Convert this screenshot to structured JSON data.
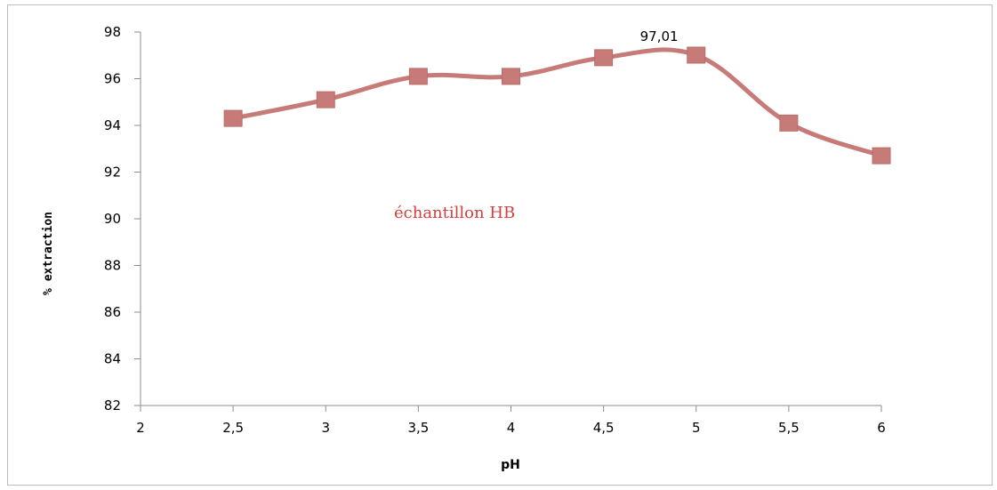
{
  "chart_data": {
    "type": "line",
    "title": "",
    "xlabel": "pH",
    "ylabel": "% extraction",
    "xlim": [
      2,
      6
    ],
    "ylim": [
      82,
      98
    ],
    "x_ticks": [
      "2",
      "2,5",
      "3",
      "3,5",
      "4",
      "4,5",
      "5",
      "5,5",
      "6"
    ],
    "y_ticks": [
      "82",
      "84",
      "86",
      "88",
      "90",
      "92",
      "94",
      "96",
      "98"
    ],
    "grid": false,
    "series": [
      {
        "name": "échantillon HB",
        "color": "#c77b78",
        "marker": "square",
        "x": [
          2.5,
          3,
          3.5,
          4,
          4.5,
          5,
          5.5,
          6
        ],
        "y": [
          94.3,
          95.1,
          96.1,
          96.1,
          96.9,
          97.01,
          94.1,
          92.7
        ]
      }
    ],
    "annotations": [
      {
        "text": "97,01",
        "x": 4.8,
        "y": 97.01
      }
    ]
  }
}
